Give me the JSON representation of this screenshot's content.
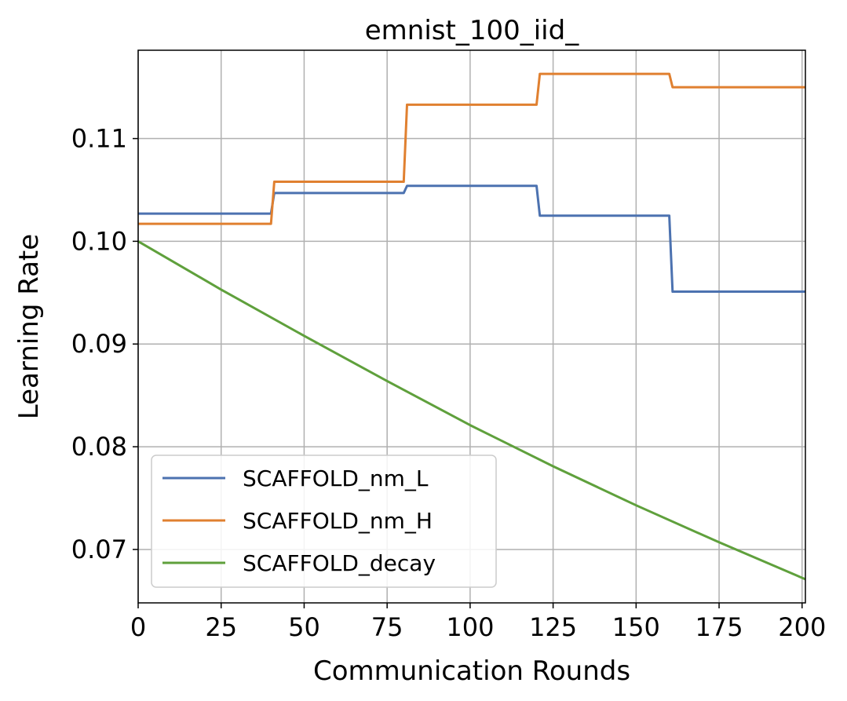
{
  "chart_data": {
    "type": "line",
    "title": "emnist_100_iid_",
    "xlabel": "Communication Rounds",
    "ylabel": "Learning Rate",
    "xlim": [
      0,
      201
    ],
    "ylim": [
      0.0648,
      0.1186
    ],
    "xticks": [
      0,
      25,
      50,
      75,
      100,
      125,
      150,
      175,
      200
    ],
    "yticks": [
      0.07,
      0.08,
      0.09,
      0.1,
      0.11
    ],
    "ytick_labels": [
      "0.07",
      "0.08",
      "0.09",
      "0.10",
      "0.11"
    ],
    "grid": true,
    "legend_position": "lower-left",
    "series": [
      {
        "name": "SCAFFOLD_nm_L",
        "color": "#4c72b0",
        "x": [
          0,
          40,
          41,
          80,
          81,
          120,
          121,
          160,
          161,
          201
        ],
        "y": [
          0.1027,
          0.1027,
          0.1047,
          0.1047,
          0.1054,
          0.1054,
          0.1025,
          0.1025,
          0.0951,
          0.0951
        ]
      },
      {
        "name": "SCAFFOLD_nm_H",
        "color": "#e08030",
        "x": [
          0,
          40,
          41,
          80,
          81,
          120,
          121,
          160,
          161,
          201
        ],
        "y": [
          0.1017,
          0.1017,
          0.1058,
          0.1058,
          0.1133,
          0.1133,
          0.1163,
          0.1163,
          0.115,
          0.115
        ]
      },
      {
        "name": "SCAFFOLD_decay",
        "color": "#5fa03c",
        "x": [
          0,
          25,
          50,
          75,
          100,
          125,
          150,
          175,
          201
        ],
        "y": [
          0.1,
          0.0953,
          0.0908,
          0.0864,
          0.0821,
          0.0781,
          0.0743,
          0.0707,
          0.0671
        ]
      }
    ]
  }
}
